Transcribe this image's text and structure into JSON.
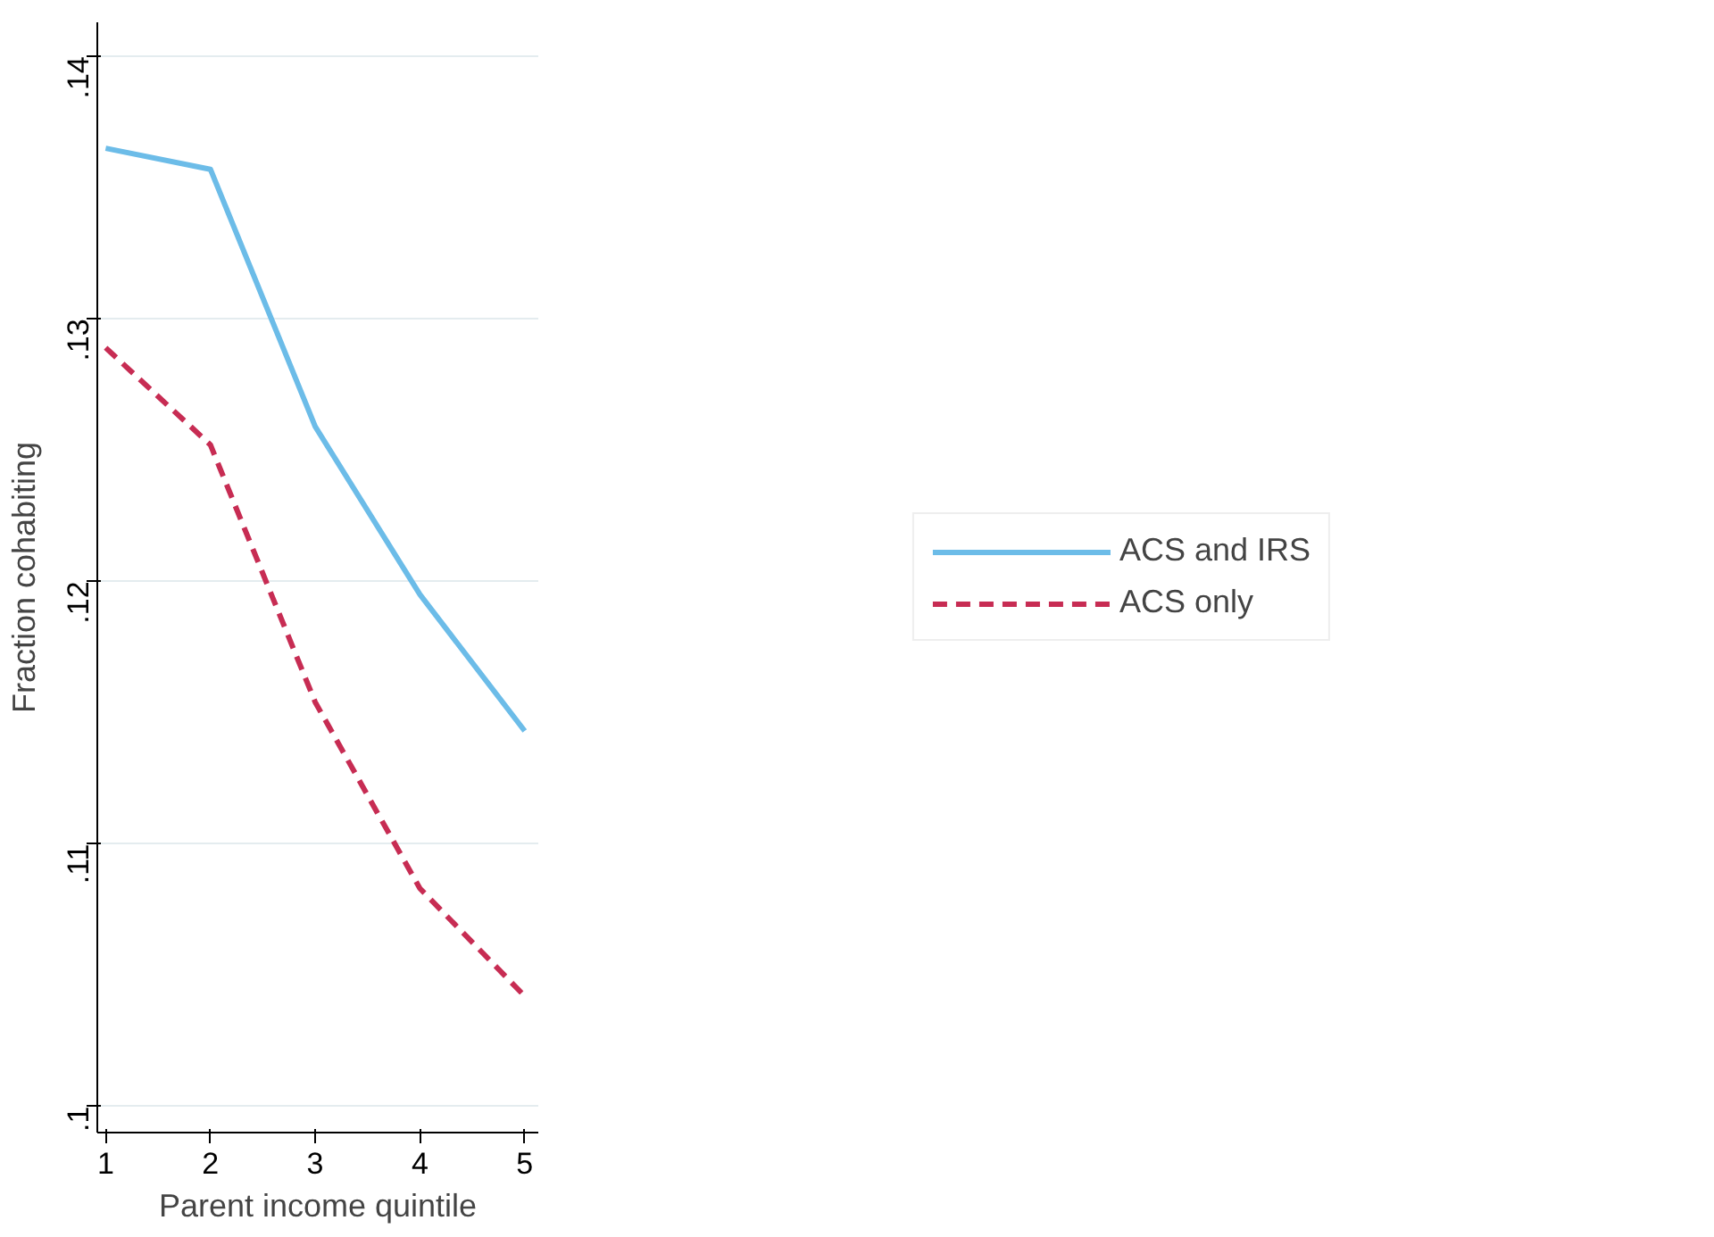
{
  "chart_data": {
    "type": "line",
    "xlabel": "Parent income quintile",
    "ylabel": "Fraction cohabiting",
    "x": [
      1,
      2,
      3,
      4,
      5
    ],
    "series": [
      {
        "name": "ACS and IRS",
        "color": "#6cbce8",
        "line_style": "solid",
        "values": [
          0.1365,
          0.1357,
          0.1259,
          0.1195,
          0.1143
        ]
      },
      {
        "name": "ACS only",
        "color": "#c72c53",
        "line_style": "dashed",
        "values": [
          0.1289,
          0.1252,
          0.1154,
          0.1083,
          0.1042
        ]
      }
    ],
    "xlim": [
      0.92,
      5.13
    ],
    "ylim": [
      0.099,
      0.1413
    ],
    "xticks": [
      1,
      2,
      3,
      4,
      5
    ],
    "yticks": [
      {
        "value": 0.1,
        "label": ".1"
      },
      {
        "value": 0.11,
        "label": ".11"
      },
      {
        "value": 0.12,
        "label": ".12"
      },
      {
        "value": 0.13,
        "label": ".13"
      },
      {
        "value": 0.14,
        "label": ".14"
      }
    ],
    "grid": "y",
    "legend": "right",
    "marker": "none"
  }
}
